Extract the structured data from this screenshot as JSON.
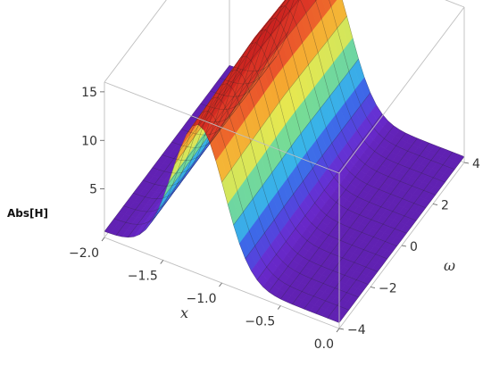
{
  "chart_data": {
    "type": "surface3d",
    "zlabel": "Abs[H]",
    "xlabel": "x",
    "ylabel": "ω",
    "xlim": [
      -2.0,
      0.0
    ],
    "ylim": [
      -4,
      4
    ],
    "zlim": [
      0,
      16
    ],
    "x_ticks": [
      "−2.0",
      "−1.5",
      "−1.0",
      "−0.5",
      "0.0"
    ],
    "y_ticks": [
      "−4",
      "−2",
      "0",
      "2",
      "4"
    ],
    "z_ticks": [
      "5",
      "10",
      "15"
    ],
    "surface": {
      "description_of_shape": "ridge along omega, Gaussian in x",
      "peak_x": -1.2,
      "width_x": 0.22,
      "peak_value": 16,
      "baseline": 0.6
    },
    "colormap": [
      "#5a1a9e",
      "#6a2bd0",
      "#3f5be8",
      "#39b8e8",
      "#7fe08a",
      "#f2e84a",
      "#f5a12e",
      "#e8442a",
      "#c81e1e"
    ]
  }
}
